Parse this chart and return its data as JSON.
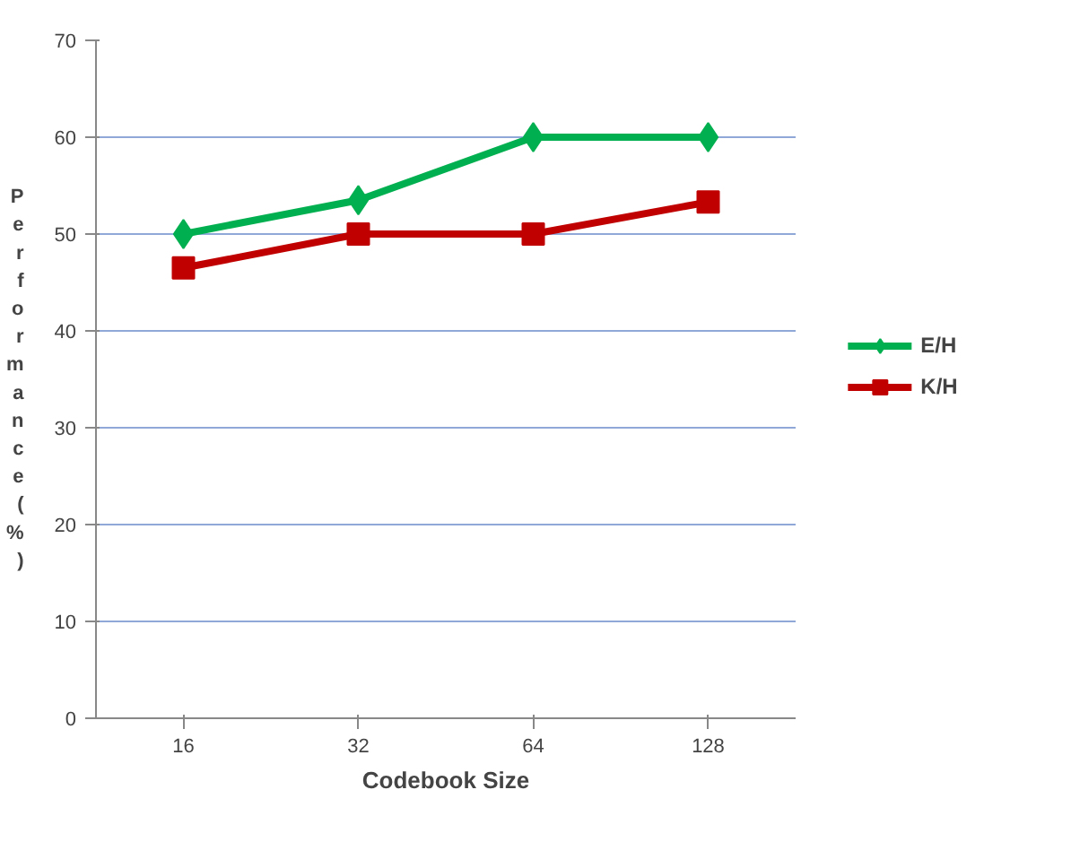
{
  "chart_data": {
    "type": "line",
    "xlabel": "Codebook Size",
    "ylabel": "Performance (%)",
    "categories": [
      "16",
      "32",
      "64",
      "128"
    ],
    "series": [
      {
        "name": "E/H",
        "color": "#00b050",
        "marker": "diamond",
        "values": [
          50,
          53.5,
          60,
          60
        ]
      },
      {
        "name": "K/H",
        "color": "#c00000",
        "marker": "square",
        "values": [
          46.5,
          50,
          50,
          53.3
        ]
      }
    ],
    "ylim": [
      0,
      70
    ],
    "yticks": [
      0,
      10,
      20,
      30,
      40,
      50,
      60,
      70
    ],
    "grid": "y",
    "legend": "right"
  }
}
